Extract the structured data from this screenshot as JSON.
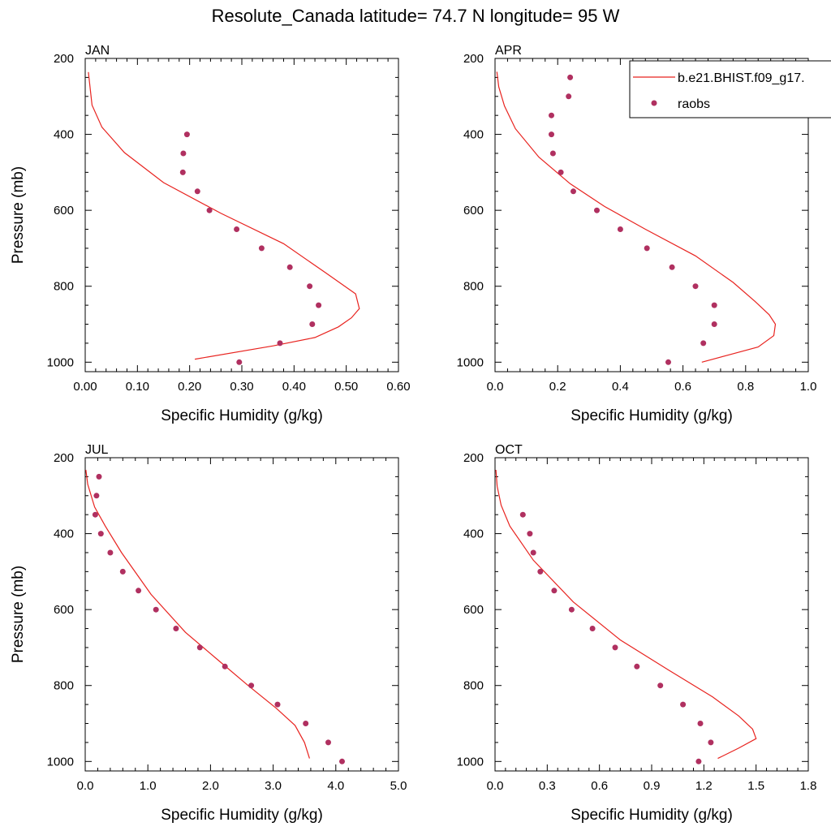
{
  "figure": {
    "title": "Resolute_Canada  latitude= 74.7 N longitude= 95 W"
  },
  "legend": {
    "model_label": "b.e21.BHIST.f09_g17.",
    "obs_label": "raobs",
    "placement": "top-right of APR panel"
  },
  "colors": {
    "model_line": "#e8231f",
    "obs_marker": "#b03060",
    "axes": "#000000",
    "background": "#ffffff"
  },
  "chart_data": [
    {
      "type": "line",
      "panel_label": "JAN",
      "xlabel": "Specific Humidity (g/kg)",
      "ylabel": "Pressure (mb)",
      "xlim": [
        0,
        0.6
      ],
      "ylim": [
        1025,
        200
      ],
      "y_reversed": true,
      "xticks": [
        0,
        0.1,
        0.2,
        0.3,
        0.4,
        0.5,
        0.6
      ],
      "xtick_labels": [
        "0.00",
        "0.10",
        "0.20",
        "0.30",
        "0.40",
        "0.50",
        "0.60"
      ],
      "yticks": [
        200,
        400,
        600,
        800,
        1000
      ],
      "ytick_labels": [
        "200",
        "400",
        "600",
        "800",
        "1000"
      ],
      "grid": false,
      "series": [
        {
          "name": "b.e21.BHIST.f09_g17.",
          "kind": "line",
          "x": [
            0.21,
            0.36,
            0.44,
            0.485,
            0.51,
            0.525,
            0.518,
            0.46,
            0.38,
            0.26,
            0.15,
            0.075,
            0.032,
            0.013,
            0.006
          ],
          "y": [
            992,
            957,
            935,
            907,
            883,
            859,
            820,
            764,
            688,
            608,
            527,
            448,
            381,
            323,
            236
          ]
        },
        {
          "name": "raobs",
          "kind": "scatter",
          "x": [
            0.295,
            0.373,
            0.435,
            0.447,
            0.43,
            0.392,
            0.338,
            0.29,
            0.238,
            0.215,
            0.187,
            0.188,
            0.195
          ],
          "y": [
            1000,
            950,
            900,
            850,
            800,
            750,
            700,
            650,
            600,
            550,
            500,
            450,
            400
          ]
        }
      ]
    },
    {
      "type": "line",
      "panel_label": "APR",
      "xlabel": "Specific Humidity (g/kg)",
      "ylabel": "",
      "xlim": [
        0,
        1.0
      ],
      "ylim": [
        1025,
        200
      ],
      "y_reversed": true,
      "xticks": [
        0,
        0.2,
        0.4,
        0.6,
        0.8,
        1.0
      ],
      "xtick_labels": [
        "0.0",
        "0.2",
        "0.4",
        "0.6",
        "0.8",
        "1.0"
      ],
      "yticks": [
        200,
        400,
        600,
        800,
        1000
      ],
      "ytick_labels": [
        "200",
        "400",
        "600",
        "800",
        "1000"
      ],
      "grid": false,
      "series": [
        {
          "name": "b.e21.BHIST.f09_g17.",
          "kind": "line",
          "x": [
            0.66,
            0.75,
            0.84,
            0.89,
            0.895,
            0.875,
            0.83,
            0.76,
            0.64,
            0.48,
            0.35,
            0.24,
            0.14,
            0.065,
            0.03,
            0.012,
            0.006
          ],
          "y": [
            1000,
            980,
            960,
            930,
            900,
            875,
            840,
            790,
            720,
            650,
            590,
            530,
            460,
            385,
            325,
            275,
            235
          ]
        },
        {
          "name": "raobs",
          "kind": "scatter",
          "x": [
            0.553,
            0.665,
            0.7,
            0.7,
            0.64,
            0.565,
            0.485,
            0.4,
            0.325,
            0.25,
            0.21,
            0.185,
            0.18,
            0.18,
            0.235,
            0.24
          ],
          "y": [
            1000,
            950,
            900,
            850,
            800,
            750,
            700,
            650,
            600,
            550,
            500,
            450,
            400,
            350,
            300,
            250
          ]
        }
      ]
    },
    {
      "type": "line",
      "panel_label": "JUL",
      "xlabel": "Specific Humidity (g/kg)",
      "ylabel": "Pressure (mb)",
      "xlim": [
        0,
        5.0
      ],
      "ylim": [
        1025,
        200
      ],
      "y_reversed": true,
      "xticks": [
        0,
        1,
        2,
        3,
        4,
        5
      ],
      "xtick_labels": [
        "0.0",
        "1.0",
        "2.0",
        "3.0",
        "4.0",
        "5.0"
      ],
      "yticks": [
        200,
        400,
        600,
        800,
        1000
      ],
      "ytick_labels": [
        "200",
        "400",
        "600",
        "800",
        "1000"
      ],
      "grid": false,
      "series": [
        {
          "name": "b.e21.BHIST.f09_g17.",
          "kind": "line",
          "x": [
            3.58,
            3.5,
            3.35,
            3.05,
            2.6,
            2.1,
            1.6,
            1.05,
            0.58,
            0.32,
            0.15,
            0.04,
            0.01
          ],
          "y": [
            992,
            950,
            905,
            860,
            800,
            730,
            660,
            560,
            450,
            380,
            330,
            270,
            232
          ]
        },
        {
          "name": "raobs",
          "kind": "scatter",
          "x": [
            4.1,
            3.88,
            3.52,
            3.07,
            2.65,
            2.23,
            1.83,
            1.45,
            1.13,
            0.85,
            0.6,
            0.4,
            0.25,
            0.16,
            0.18,
            0.22
          ],
          "y": [
            1000,
            950,
            900,
            850,
            800,
            750,
            700,
            650,
            600,
            550,
            500,
            450,
            400,
            350,
            300,
            250
          ]
        }
      ]
    },
    {
      "type": "line",
      "panel_label": "OCT",
      "xlabel": "Specific Humidity (g/kg)",
      "ylabel": "",
      "xlim": [
        0,
        1.8
      ],
      "ylim": [
        1025,
        200
      ],
      "y_reversed": true,
      "xticks": [
        0,
        0.3,
        0.6,
        0.9,
        1.2,
        1.5,
        1.8
      ],
      "xtick_labels": [
        "0.0",
        "0.3",
        "0.6",
        "0.9",
        "1.2",
        "1.5",
        "1.8"
      ],
      "yticks": [
        200,
        400,
        600,
        800,
        1000
      ],
      "ytick_labels": [
        "200",
        "400",
        "600",
        "800",
        "1000"
      ],
      "grid": false,
      "series": [
        {
          "name": "b.e21.BHIST.f09_g17.",
          "kind": "line",
          "x": [
            1.28,
            1.4,
            1.5,
            1.48,
            1.4,
            1.25,
            1.0,
            0.72,
            0.45,
            0.22,
            0.085,
            0.035,
            0.012,
            0.005
          ],
          "y": [
            992,
            965,
            940,
            915,
            880,
            830,
            760,
            680,
            580,
            470,
            380,
            325,
            275,
            232
          ]
        },
        {
          "name": "raobs",
          "kind": "scatter",
          "x": [
            1.17,
            1.24,
            1.18,
            1.08,
            0.95,
            0.815,
            0.69,
            0.56,
            0.44,
            0.34,
            0.26,
            0.22,
            0.2,
            0.16
          ],
          "y": [
            1000,
            950,
            900,
            850,
            800,
            750,
            700,
            650,
            600,
            550,
            500,
            450,
            400,
            350
          ]
        }
      ]
    }
  ]
}
